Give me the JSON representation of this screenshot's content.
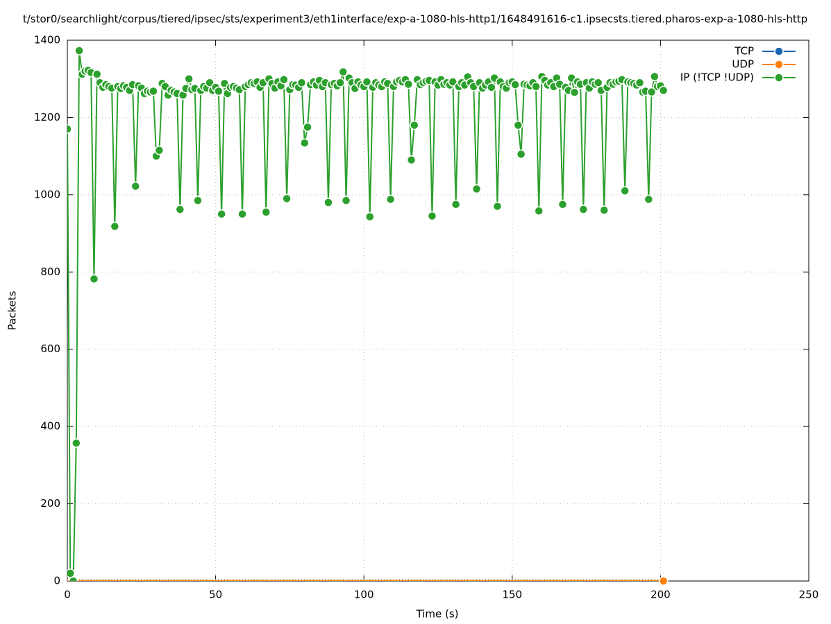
{
  "chart_data": {
    "type": "line",
    "title": "t/stor0/searchlight/corpus/tiered/ipsec/sts/experiment3/eth1interface/exp-a-1080-hls-http1/1648491616-c1.ipsecsts.tiered.pharos-exp-a-1080-hls-http",
    "x_label": "Time (s)",
    "y_label": "Packets",
    "xlim": [
      0,
      250
    ],
    "xticks": [
      0,
      50,
      100,
      150,
      200,
      250
    ],
    "ylim": [
      0,
      1400
    ],
    "yticks": [
      0,
      200,
      400,
      600,
      800,
      1000,
      1200,
      1400
    ],
    "grid": true,
    "legend": "top-right",
    "x": [
      0,
      1,
      2,
      3,
      4,
      5,
      6,
      7,
      8,
      9,
      10,
      11,
      12,
      13,
      14,
      15,
      16,
      17,
      18,
      19,
      20,
      21,
      22,
      23,
      24,
      25,
      26,
      27,
      28,
      29,
      30,
      31,
      32,
      33,
      34,
      35,
      36,
      37,
      38,
      39,
      40,
      41,
      42,
      43,
      44,
      45,
      46,
      47,
      48,
      49,
      50,
      51,
      52,
      53,
      54,
      55,
      56,
      57,
      58,
      59,
      60,
      61,
      62,
      63,
      64,
      65,
      66,
      67,
      68,
      69,
      70,
      71,
      72,
      73,
      74,
      75,
      76,
      77,
      78,
      79,
      80,
      81,
      82,
      83,
      84,
      85,
      86,
      87,
      88,
      89,
      90,
      91,
      92,
      93,
      94,
      95,
      96,
      97,
      98,
      99,
      100,
      101,
      102,
      103,
      104,
      105,
      106,
      107,
      108,
      109,
      110,
      111,
      112,
      113,
      114,
      115,
      116,
      117,
      118,
      119,
      120,
      121,
      122,
      123,
      124,
      125,
      126,
      127,
      128,
      129,
      130,
      131,
      132,
      133,
      134,
      135,
      136,
      137,
      138,
      139,
      140,
      141,
      142,
      143,
      144,
      145,
      146,
      147,
      148,
      149,
      150,
      151,
      152,
      153,
      154,
      155,
      156,
      157,
      158,
      159,
      160,
      161,
      162,
      163,
      164,
      165,
      166,
      167,
      168,
      169,
      170,
      171,
      172,
      173,
      174,
      175,
      176,
      177,
      178,
      179,
      180,
      181,
      182,
      183,
      184,
      185,
      186,
      187,
      188,
      189,
      190,
      191,
      192,
      193,
      194,
      195,
      196,
      197,
      198,
      199,
      200,
      201
    ],
    "series": [
      {
        "name": "TCP",
        "color": "#1a66b0",
        "values": [
          0,
          0,
          0,
          0,
          0,
          0,
          0,
          0,
          0,
          0,
          0,
          0,
          0,
          0,
          0,
          0,
          0,
          0,
          0,
          0,
          0,
          0,
          0,
          0,
          0,
          0,
          0,
          0,
          0,
          0,
          0,
          0,
          0,
          0,
          0,
          0,
          0,
          0,
          0,
          0,
          0,
          0,
          0,
          0,
          0,
          0,
          0,
          0,
          0,
          0,
          0,
          0,
          0,
          0,
          0,
          0,
          0,
          0,
          0,
          0,
          0,
          0,
          0,
          0,
          0,
          0,
          0,
          0,
          0,
          0,
          0,
          0,
          0,
          0,
          0,
          0,
          0,
          0,
          0,
          0,
          0,
          0,
          0,
          0,
          0,
          0,
          0,
          0,
          0,
          0,
          0,
          0,
          0,
          0,
          0,
          0,
          0,
          0,
          0,
          0,
          0,
          0,
          0,
          0,
          0,
          0,
          0,
          0,
          0,
          0,
          0,
          0,
          0,
          0,
          0,
          0,
          0,
          0,
          0,
          0,
          0,
          0,
          0,
          0,
          0,
          0,
          0,
          0,
          0,
          0,
          0,
          0,
          0,
          0,
          0,
          0,
          0,
          0,
          0,
          0,
          0,
          0,
          0,
          0,
          0,
          0,
          0,
          0,
          0,
          0,
          0,
          0,
          0,
          0,
          0,
          0,
          0,
          0,
          0,
          0,
          0,
          0,
          0,
          0,
          0,
          0,
          0,
          0,
          0,
          0,
          0,
          0,
          0,
          0,
          0,
          0,
          0,
          0,
          0,
          0,
          0,
          0,
          0,
          0,
          0,
          0,
          0,
          0,
          0,
          0,
          0,
          0,
          0,
          0,
          0,
          0,
          0,
          0,
          0,
          0,
          0,
          0
        ]
      },
      {
        "name": "UDP",
        "color": "#ff7f0e",
        "values": [
          0,
          0,
          0,
          0,
          0,
          0,
          0,
          0,
          0,
          0,
          0,
          0,
          0,
          0,
          0,
          0,
          0,
          0,
          0,
          0,
          0,
          0,
          0,
          0,
          0,
          0,
          0,
          0,
          0,
          0,
          0,
          0,
          0,
          0,
          0,
          0,
          0,
          0,
          0,
          0,
          0,
          0,
          0,
          0,
          0,
          0,
          0,
          0,
          0,
          0,
          0,
          0,
          0,
          0,
          0,
          0,
          0,
          0,
          0,
          0,
          0,
          0,
          0,
          0,
          0,
          0,
          0,
          0,
          0,
          0,
          0,
          0,
          0,
          0,
          0,
          0,
          0,
          0,
          0,
          0,
          0,
          0,
          0,
          0,
          0,
          0,
          0,
          0,
          0,
          0,
          0,
          0,
          0,
          0,
          0,
          0,
          0,
          0,
          0,
          0,
          0,
          0,
          0,
          0,
          0,
          0,
          0,
          0,
          0,
          0,
          0,
          0,
          0,
          0,
          0,
          0,
          0,
          0,
          0,
          0,
          0,
          0,
          0,
          0,
          0,
          0,
          0,
          0,
          0,
          0,
          0,
          0,
          0,
          0,
          0,
          0,
          0,
          0,
          0,
          0,
          0,
          0,
          0,
          0,
          0,
          0,
          0,
          0,
          0,
          0,
          0,
          0,
          0,
          0,
          0,
          0,
          0,
          0,
          0,
          0,
          0,
          0,
          0,
          0,
          0,
          0,
          0,
          0,
          0,
          0,
          0,
          0,
          0,
          0,
          0,
          0,
          0,
          0,
          0,
          0,
          0,
          0,
          0,
          0,
          0,
          0,
          0,
          0,
          0,
          0,
          0,
          0,
          0,
          0,
          0,
          0,
          0,
          0,
          0,
          0,
          0,
          0
        ]
      },
      {
        "name": "IP (!TCP  !UDP)",
        "color": "#2ca02c",
        "values": [
          1170,
          20,
          0,
          357,
          1373,
          1312,
          1320,
          1322,
          1316,
          782,
          1312,
          1290,
          1278,
          1285,
          1280,
          1276,
          918,
          1280,
          1275,
          1282,
          1278,
          1270,
          1285,
          1022,
          1282,
          1276,
          1262,
          1268,
          1266,
          1268,
          1100,
          1115,
          1288,
          1280,
          1258,
          1270,
          1266,
          1262,
          962,
          1258,
          1275,
          1300,
          1272,
          1275,
          985,
          1270,
          1280,
          1276,
          1290,
          1270,
          1278,
          1268,
          950,
          1288,
          1262,
          1278,
          1280,
          1276,
          1272,
          950,
          1280,
          1285,
          1290,
          1288,
          1292,
          1278,
          1290,
          955,
          1300,
          1288,
          1276,
          1292,
          1282,
          1298,
          990,
          1272,
          1285,
          1284,
          1278,
          1290,
          1134,
          1175,
          1285,
          1292,
          1284,
          1296,
          1280,
          1290,
          980,
          1285,
          1288,
          1282,
          1290,
          1318,
          985,
          1302,
          1290,
          1275,
          1292,
          1284,
          1280,
          1292,
          943,
          1278,
          1290,
          1284,
          1280,
          1292,
          1288,
          988,
          1280,
          1292,
          1296,
          1292,
          1298,
          1286,
          1090,
          1180,
          1298,
          1285,
          1290,
          1294,
          1296,
          945,
          1292,
          1284,
          1298,
          1286,
          1290,
          1284,
          1292,
          975,
          1280,
          1290,
          1284,
          1305,
          1290,
          1280,
          1015,
          1290,
          1276,
          1284,
          1292,
          1278,
          1302,
          970,
          1292,
          1280,
          1276,
          1290,
          1292,
          1285,
          1180,
          1105,
          1286,
          1284,
          1282,
          1290,
          1280,
          958,
          1306,
          1296,
          1284,
          1290,
          1280,
          1302,
          1286,
          975,
          1278,
          1270,
          1302,
          1265,
          1292,
          1286,
          962,
          1290,
          1276,
          1292,
          1286,
          1290,
          1270,
          960,
          1278,
          1290,
          1286,
          1292,
          1294,
          1298,
          1010,
          1292,
          1290,
          1288,
          1284,
          1290,
          1266,
          1268,
          988,
          1266,
          1306,
          1280,
          1282,
          1270
        ]
      }
    ]
  }
}
